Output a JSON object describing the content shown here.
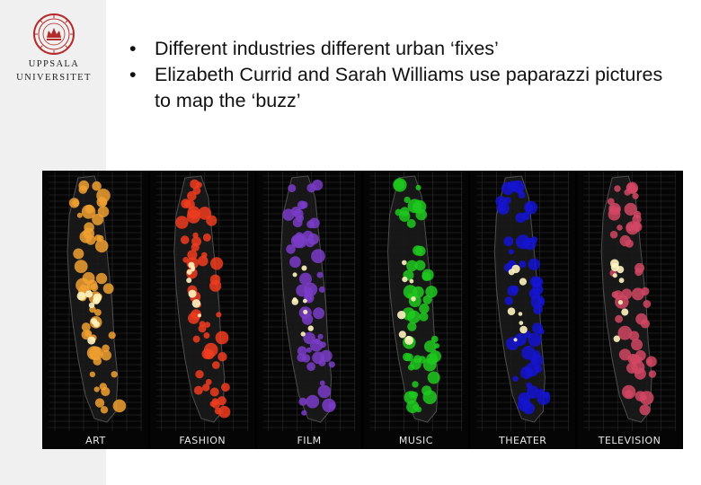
{
  "university": {
    "line1": "UPPSALA",
    "line2": "UNIVERSITET"
  },
  "bullets": [
    "Different industries different urban ‘fixes’",
    "Elizabeth Currid and Sarah Williams use paparazzi pictures to map the ‘buzz’"
  ],
  "maps": {
    "panels": [
      {
        "label": "ART",
        "color": "#f0a030"
      },
      {
        "label": "FASHION",
        "color": "#f03c1e"
      },
      {
        "label": "FILM",
        "color": "#7a3cc8"
      },
      {
        "label": "MUSIC",
        "color": "#1ec81e"
      },
      {
        "label": "THEATER",
        "color": "#1414d2"
      },
      {
        "label": "TELEVISION",
        "color": "#d24664"
      }
    ]
  }
}
